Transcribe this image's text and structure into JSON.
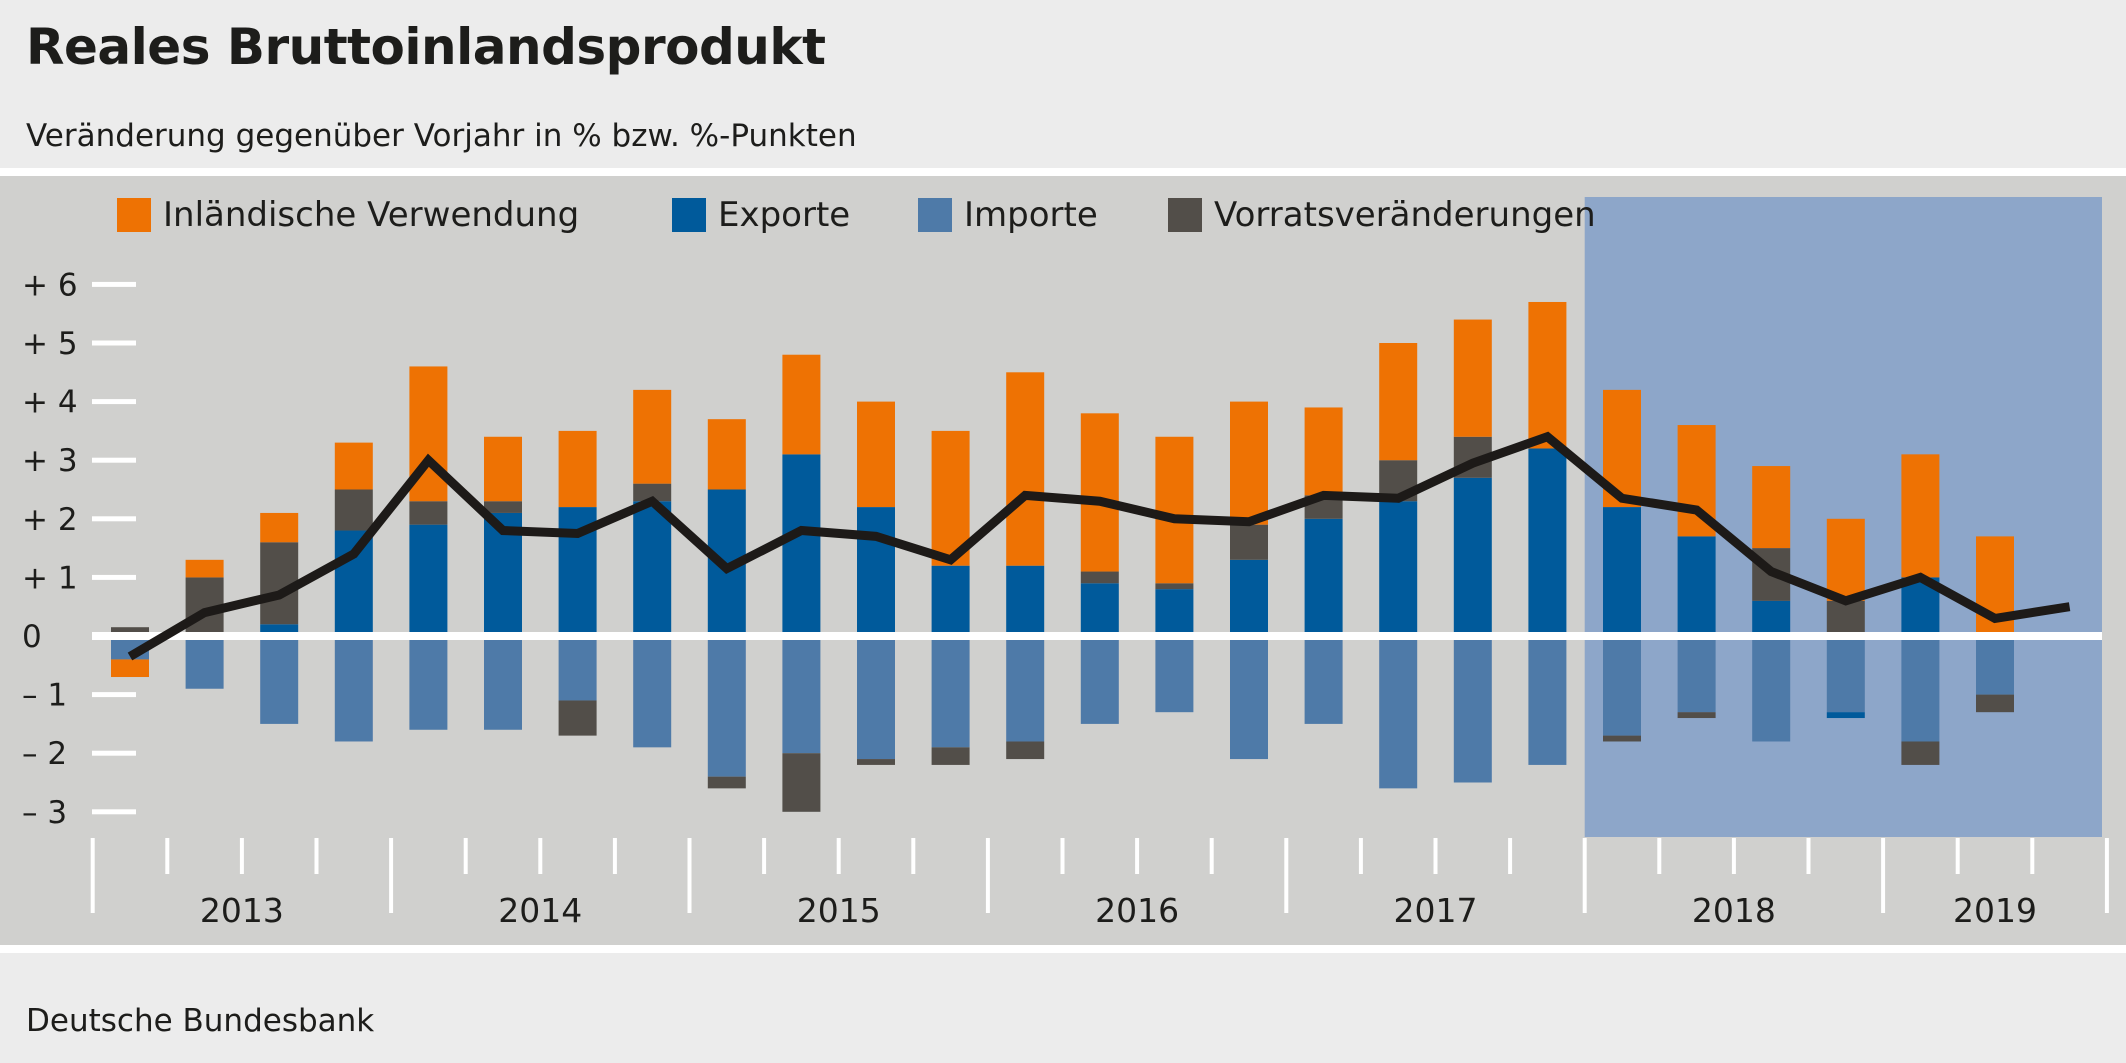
{
  "title": "Reales Bruttoinlandsprodukt",
  "subtitle": "Veränderung gegenüber Vorjahr in % bzw. %-Punkten",
  "source": "Deutsche Bundesbank",
  "colors": {
    "inlaendische_verwendung": "#ee7203",
    "exporte": "#005a9b",
    "importe": "#4e7aa8",
    "vorratsveraenderungen": "#524e49",
    "bip_line": "#1d1a18",
    "forecast_shade": "#8da6c9",
    "plot_bg": "#d0d0ce"
  },
  "chart_data": {
    "type": "bar",
    "stacked": true,
    "legend": [
      "Inländische Verwendung",
      "Exporte",
      "Importe",
      "Vorratsveränderungen"
    ],
    "legend_placement": "top",
    "ylim": [
      -3.2,
      6.2
    ],
    "yticks": [
      6,
      5,
      4,
      3,
      2,
      1,
      0,
      -1,
      -2,
      -3
    ],
    "ytick_labels": [
      "+ 6",
      "+ 5",
      "+ 4",
      "+ 3",
      "+ 2",
      "+ 1",
      "0",
      "– 1",
      "– 2",
      "– 3"
    ],
    "years": [
      "2013",
      "2014",
      "2015",
      "2016",
      "2017",
      "2018",
      "2019"
    ],
    "categories": [
      "2013Q1",
      "2013Q2",
      "2013Q3",
      "2013Q4",
      "2014Q1",
      "2014Q2",
      "2014Q3",
      "2014Q4",
      "2015Q1",
      "2015Q2",
      "2015Q3",
      "2015Q4",
      "2016Q1",
      "2016Q2",
      "2016Q3",
      "2016Q4",
      "2017Q1",
      "2017Q2",
      "2017Q3",
      "2017Q4",
      "2018Q1",
      "2018Q2",
      "2018Q3",
      "2018Q4",
      "2019Q1",
      "2019Q2",
      "2019Q3"
    ],
    "forecast_shading_from": "2018Q1",
    "series": [
      {
        "name": "Exporte",
        "key": "exporte",
        "values": [
          0.05,
          0,
          0.2,
          1.8,
          1.9,
          2.1,
          2.2,
          2.3,
          2.5,
          3.1,
          2.2,
          1.2,
          1.2,
          0.9,
          0.8,
          1.3,
          2.0,
          2.3,
          2.7,
          3.2,
          2.2,
          1.7,
          0.6,
          -0.1,
          1.0,
          0,
          null
        ]
      },
      {
        "name": "Vorratsveränderungen",
        "key": "vorratsveraenderungen",
        "values": [
          0.1,
          1.0,
          1.4,
          0.7,
          0.4,
          0.2,
          -0.6,
          0.3,
          -0.2,
          -1.0,
          -0.1,
          -0.3,
          -0.3,
          0.2,
          0.1,
          0.6,
          0.4,
          0.7,
          0.7,
          0,
          -0.1,
          -0.1,
          0.9,
          0.6,
          -0.4,
          -0.3,
          null
        ]
      },
      {
        "name": "Inländische Verwendung",
        "key": "inlaendische_verwendung",
        "values": [
          -0.3,
          0.3,
          0.5,
          0.8,
          2.3,
          1.1,
          1.3,
          1.6,
          1.2,
          1.7,
          1.8,
          2.3,
          3.3,
          2.7,
          2.5,
          2.1,
          1.5,
          2.0,
          2.0,
          2.5,
          2.0,
          1.9,
          1.4,
          1.4,
          2.1,
          1.7,
          null
        ]
      },
      {
        "name": "Importe",
        "key": "importe",
        "values": [
          -0.4,
          -0.9,
          -1.5,
          -1.8,
          -1.6,
          -1.6,
          -1.1,
          -1.9,
          -2.4,
          -2.0,
          -2.1,
          -1.9,
          -1.8,
          -1.5,
          -1.3,
          -2.1,
          -1.5,
          -2.6,
          -2.5,
          -2.2,
          -1.7,
          -1.3,
          -1.8,
          -1.3,
          -1.8,
          -1.0,
          null
        ]
      }
    ],
    "line": {
      "name": "BIP",
      "values": [
        -0.35,
        0.4,
        0.7,
        1.4,
        3.0,
        1.8,
        1.75,
        2.3,
        1.15,
        1.8,
        1.7,
        1.3,
        2.4,
        2.3,
        2.0,
        1.95,
        2.4,
        2.35,
        2.95,
        3.4,
        2.35,
        2.15,
        1.1,
        0.6,
        1.0,
        0.3,
        0.5
      ]
    }
  }
}
